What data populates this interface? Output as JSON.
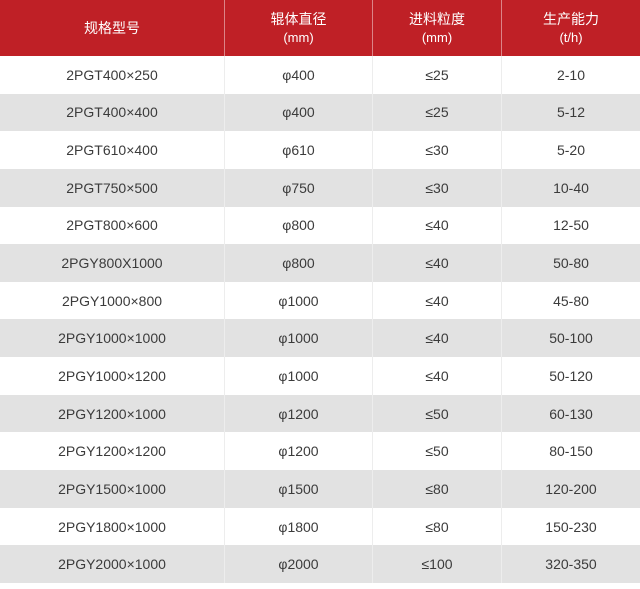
{
  "chart_data": {
    "type": "table",
    "title": "",
    "columns": [
      {
        "label": "规格型号",
        "unit": ""
      },
      {
        "label": "辊体直径",
        "unit": "(mm)"
      },
      {
        "label": "进料粒度",
        "unit": "(mm)"
      },
      {
        "label": "生产能力",
        "unit": "(t/h)"
      }
    ],
    "rows": [
      {
        "model": "2PGT400×250",
        "roller_diameter": "φ400",
        "feed_size": "≤25",
        "capacity": "2-10"
      },
      {
        "model": "2PGT400×400",
        "roller_diameter": "φ400",
        "feed_size": "≤25",
        "capacity": "5-12"
      },
      {
        "model": "2PGT610×400",
        "roller_diameter": "φ610",
        "feed_size": "≤30",
        "capacity": "5-20"
      },
      {
        "model": "2PGT750×500",
        "roller_diameter": "φ750",
        "feed_size": "≤30",
        "capacity": "10-40"
      },
      {
        "model": "2PGT800×600",
        "roller_diameter": "φ800",
        "feed_size": "≤40",
        "capacity": "12-50"
      },
      {
        "model": "2PGY800X1000",
        "roller_diameter": "φ800",
        "feed_size": "≤40",
        "capacity": "50-80"
      },
      {
        "model": "2PGY1000×800",
        "roller_diameter": "φ1000",
        "feed_size": "≤40",
        "capacity": "45-80"
      },
      {
        "model": "2PGY1000×1000",
        "roller_diameter": "φ1000",
        "feed_size": "≤40",
        "capacity": "50-100"
      },
      {
        "model": "2PGY1000×1200",
        "roller_diameter": "φ1000",
        "feed_size": "≤40",
        "capacity": "50-120"
      },
      {
        "model": "2PGY1200×1000",
        "roller_diameter": "φ1200",
        "feed_size": "≤50",
        "capacity": "60-130"
      },
      {
        "model": "2PGY1200×1200",
        "roller_diameter": "φ1200",
        "feed_size": "≤50",
        "capacity": "80-150"
      },
      {
        "model": "2PGY1500×1000",
        "roller_diameter": "φ1500",
        "feed_size": "≤80",
        "capacity": "120-200"
      },
      {
        "model": "2PGY1800×1000",
        "roller_diameter": "φ1800",
        "feed_size": "≤80",
        "capacity": "150-230"
      },
      {
        "model": "2PGY2000×1000",
        "roller_diameter": "φ2000",
        "feed_size": "≤100",
        "capacity": "320-350"
      }
    ]
  },
  "colors": {
    "header_bg": "#bf2026",
    "header_text": "#ffffff",
    "row_alt_bg": "#e2e2e2",
    "body_text": "#3b3b3b",
    "divider": "#ededed"
  }
}
